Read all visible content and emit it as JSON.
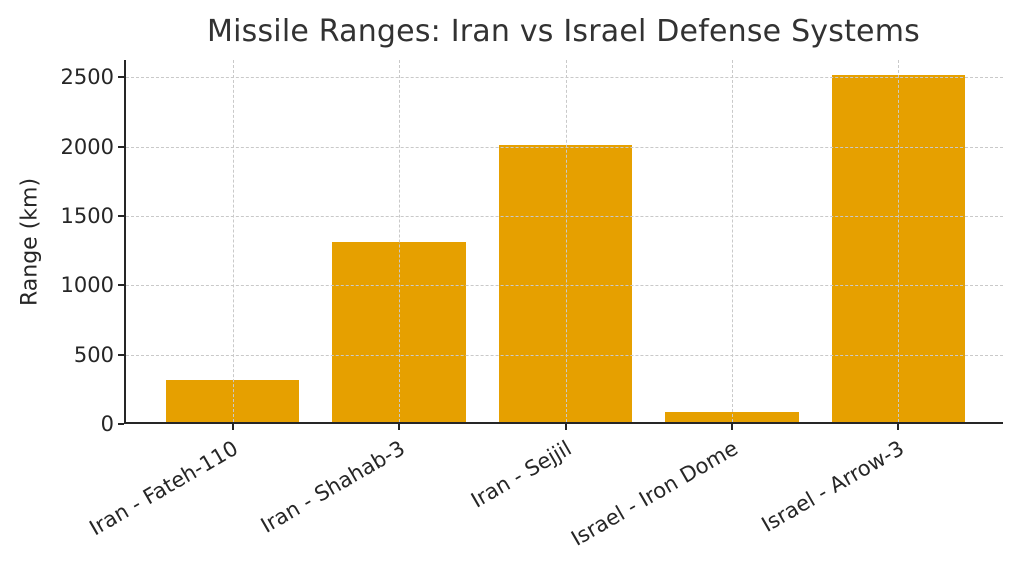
{
  "chart_data": {
    "type": "bar",
    "title": "Missile Ranges: Iran vs Israel Defense Systems",
    "categories": [
      "Iran - Fateh-110",
      "Iran - Shahab-3",
      "Iran - Sejjil",
      "Israel - Iron Dome",
      "Israel - Arrow-3"
    ],
    "values": [
      300,
      1300,
      2000,
      70,
      2500
    ],
    "xlabel": "",
    "ylabel": "Range (km)",
    "ylim": [
      0,
      2625
    ],
    "yticks": [
      0,
      500,
      1000,
      1500,
      2000,
      2500
    ],
    "bar_color": "#E6A000",
    "bar_width_fraction": 0.8,
    "x_margin_units": 0.24,
    "grid": true,
    "grid_color": "#c9c9c9",
    "grid_style": "dashed",
    "x_tick_rotation_deg": 30,
    "axis_color": "#262626",
    "text_color": "#262626",
    "title_color": "#323232",
    "background": "#ffffff",
    "legend": null
  }
}
